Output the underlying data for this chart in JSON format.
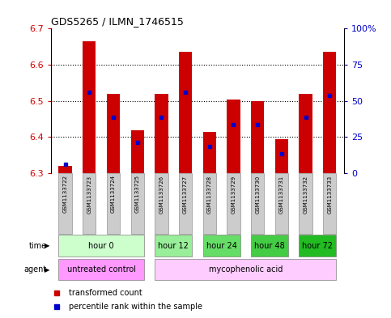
{
  "title": "GDS5265 / ILMN_1746515",
  "samples": [
    "GSM1133722",
    "GSM1133723",
    "GSM1133724",
    "GSM1133725",
    "GSM1133726",
    "GSM1133727",
    "GSM1133728",
    "GSM1133729",
    "GSM1133730",
    "GSM1133731",
    "GSM1133732",
    "GSM1133733"
  ],
  "bar_bottom": 6.3,
  "bar_tops": [
    6.32,
    6.665,
    6.52,
    6.42,
    6.52,
    6.635,
    6.415,
    6.505,
    6.5,
    6.395,
    6.52,
    6.635
  ],
  "percentile_values": [
    6.325,
    6.525,
    6.455,
    6.385,
    6.455,
    6.525,
    6.375,
    6.435,
    6.435,
    6.355,
    6.455,
    6.515
  ],
  "ylim_left": [
    6.3,
    6.7
  ],
  "ylim_right": [
    0,
    100
  ],
  "yticks_left": [
    6.3,
    6.4,
    6.5,
    6.6,
    6.7
  ],
  "yticks_right": [
    0,
    25,
    50,
    75,
    100
  ],
  "ytick_right_labels": [
    "0",
    "25",
    "50",
    "75",
    "100%"
  ],
  "bar_color": "#cc0000",
  "percentile_color": "#0000cc",
  "bar_width": 0.55,
  "time_groups": [
    {
      "label": "hour 0",
      "start": 0,
      "end": 3,
      "color": "#ccffcc"
    },
    {
      "label": "hour 12",
      "start": 4,
      "end": 5,
      "color": "#99ee99"
    },
    {
      "label": "hour 24",
      "start": 6,
      "end": 7,
      "color": "#66dd66"
    },
    {
      "label": "hour 48",
      "start": 8,
      "end": 9,
      "color": "#44cc44"
    },
    {
      "label": "hour 72",
      "start": 10,
      "end": 11,
      "color": "#22bb22"
    }
  ],
  "agent_groups": [
    {
      "label": "untreated control",
      "start": 0,
      "end": 3,
      "color": "#ff99ff"
    },
    {
      "label": "mycophenolic acid",
      "start": 4,
      "end": 11,
      "color": "#ffccff"
    }
  ],
  "sample_bg_color": "#cccccc",
  "grid_color": "black",
  "left_label_color": "#cc0000",
  "right_label_color": "#0000cc",
  "background_color": "white"
}
